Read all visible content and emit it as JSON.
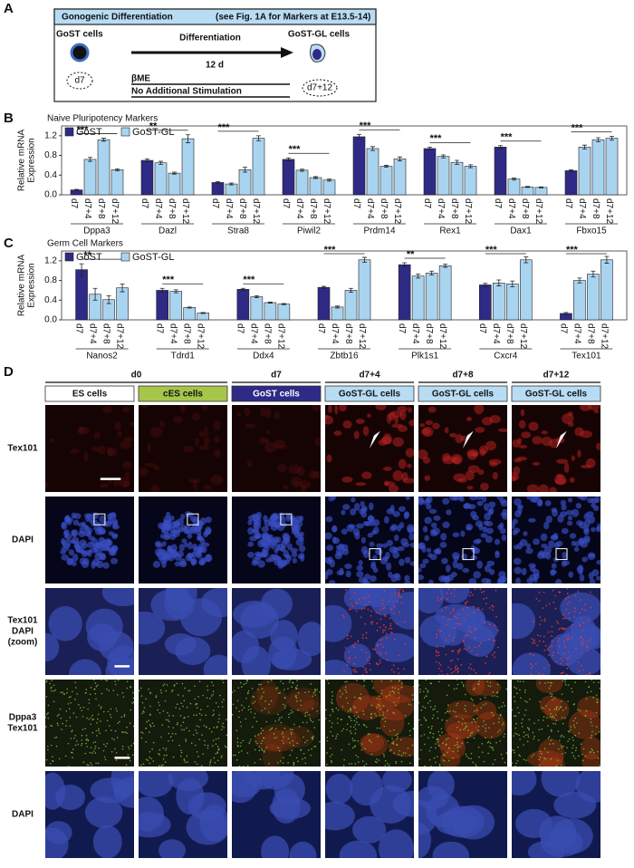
{
  "panel_labels": [
    "A",
    "B",
    "C",
    "D"
  ],
  "diagram": {
    "title": "Gonogenic Differentiation",
    "note": "(see Fig. 1A for Markers at E13.5-14)",
    "start_label": "GoST cells",
    "start_day": "d7",
    "process": "Differentiation",
    "duration": "12 d",
    "end_label": "GoST-GL cells",
    "end_day": "d7+12",
    "conditions": [
      "βME",
      "No Additional Stimulation"
    ]
  },
  "chart_data": [
    {
      "type": "bar",
      "title": "Naive Pluripotency Markers",
      "y_label": [
        "Relative mRNA",
        "Expression"
      ],
      "categories": [
        "Dppa3",
        "Dazl",
        "Stra8",
        "Piwil2",
        "Prdm14",
        "Rex1",
        "Dax1",
        "Fbxo15"
      ],
      "time_points": [
        "d7",
        "d7+4",
        "d7+8",
        "d7+12"
      ],
      "series": [
        {
          "name": "GoST",
          "color": "#2e2a86",
          "values": [
            0.1,
            0.7,
            0.25,
            0.72,
            1.18,
            0.94,
            0.97,
            0.49
          ],
          "errors": [
            0.01,
            0.03,
            0.02,
            0.03,
            0.05,
            0.03,
            0.03,
            0.02
          ]
        },
        {
          "name": "GoST-GL",
          "color": "#a9d4f0",
          "values": [
            [
              0.72,
              1.12,
              0.51
            ],
            [
              0.65,
              0.44,
              1.14
            ],
            [
              0.22,
              0.51,
              1.15
            ],
            [
              0.5,
              0.35,
              0.3
            ],
            [
              0.94,
              0.58,
              0.73
            ],
            [
              0.78,
              0.66,
              0.58
            ],
            [
              0.32,
              0.16,
              0.15
            ],
            [
              0.97,
              1.12,
              1.15
            ]
          ],
          "errors": [
            [
              0.04,
              0.03,
              0.02
            ],
            [
              0.03,
              0.02,
              0.08
            ],
            [
              0.02,
              0.05,
              0.05
            ],
            [
              0.02,
              0.02,
              0.02
            ],
            [
              0.04,
              0.02,
              0.04
            ],
            [
              0.03,
              0.04,
              0.03
            ],
            [
              0.02,
              0.01,
              0.01
            ],
            [
              0.04,
              0.04,
              0.04
            ]
          ]
        }
      ],
      "significance": [
        "***",
        "**",
        "***",
        "***",
        "***",
        "***",
        "***",
        "***"
      ],
      "ylim": [
        0,
        1.4
      ],
      "yticks": [
        {
          "value": 0,
          "label": "0.0"
        },
        0.4,
        0.8,
        1.2
      ],
      "legend": "upper left"
    },
    {
      "type": "bar",
      "title": "Germ Cell Markers",
      "y_label": [
        "Relative mRNA",
        "Expression"
      ],
      "categories": [
        "Nanos2",
        "Tdrd1",
        "Ddx4",
        "Zbtb16",
        "Plk1s1",
        "Cxcr4",
        "Tex101"
      ],
      "time_points": [
        "d7",
        "d7+4",
        "d7+8",
        "d7+12"
      ],
      "series": [
        {
          "name": "GoST",
          "color": "#2e2a86",
          "values": [
            1.02,
            0.6,
            0.62,
            0.66,
            1.12,
            0.71,
            0.13
          ],
          "errors": [
            0.12,
            0.04,
            0.02,
            0.02,
            0.04,
            0.03,
            0.02
          ]
        },
        {
          "name": "GoST-GL",
          "color": "#a9d4f0",
          "values": [
            [
              0.52,
              0.41,
              0.65
            ],
            [
              0.58,
              0.25,
              0.14
            ],
            [
              0.47,
              0.35,
              0.32
            ],
            [
              0.26,
              0.6,
              1.22
            ],
            [
              0.89,
              0.95,
              1.1
            ],
            [
              0.75,
              0.73,
              1.22
            ],
            [
              0.8,
              0.93,
              1.22
            ]
          ],
          "errors": [
            [
              0.12,
              0.08,
              0.08
            ],
            [
              0.03,
              0.01,
              0.01
            ],
            [
              0.02,
              0.01,
              0.01
            ],
            [
              0.02,
              0.04,
              0.05
            ],
            [
              0.04,
              0.04,
              0.03
            ],
            [
              0.06,
              0.06,
              0.06
            ],
            [
              0.05,
              0.06,
              0.07
            ]
          ]
        }
      ],
      "significance": [
        "**",
        "***",
        "***",
        "***",
        "**",
        "***",
        "***"
      ],
      "ylim": [
        0,
        1.4
      ],
      "yticks": [
        {
          "value": 0,
          "label": "0.0"
        },
        0.4,
        0.8,
        1.2
      ],
      "legend": "upper left"
    }
  ],
  "micrographs": {
    "time_headers": [
      "d0",
      "d7",
      "d7+4",
      "d7+8",
      "d7+12"
    ],
    "columns": [
      {
        "label": "ES cells",
        "color": "#ffffff"
      },
      {
        "label": "cES cells",
        "color": "#a6c64a"
      },
      {
        "label": "GoST cells",
        "color": "#2e2a86"
      },
      {
        "label": "GoST-GL cells",
        "color": "#b8dcf4"
      },
      {
        "label": "GoST-GL cells",
        "color": "#b8dcf4"
      },
      {
        "label": "GoST-GL cells",
        "color": "#b8dcf4"
      }
    ],
    "rows": [
      [
        "Tex101"
      ],
      [
        "DAPI"
      ],
      [
        "Tex101",
        "DAPI",
        "(zoom)"
      ],
      [
        "Dppa3",
        "Tex101"
      ],
      [
        "DAPI"
      ]
    ]
  }
}
